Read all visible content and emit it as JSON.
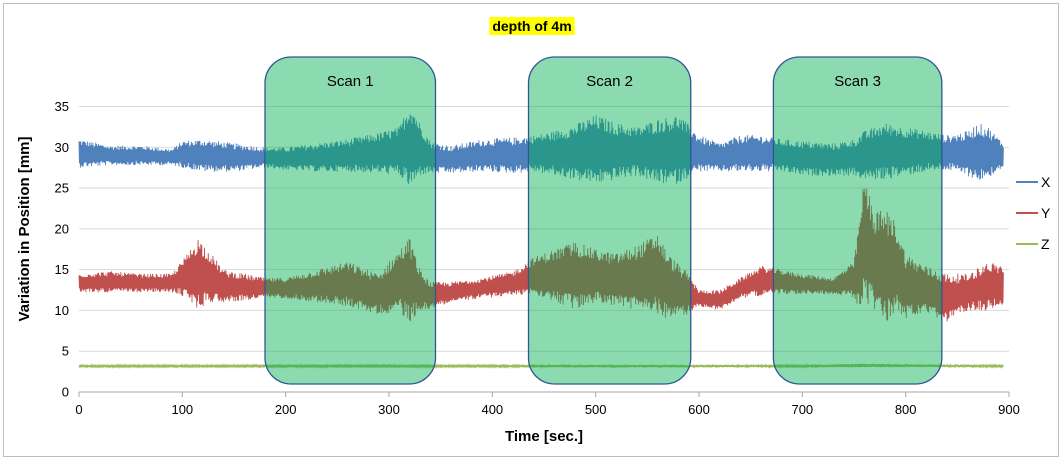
{
  "chart_data": {
    "type": "line",
    "title": "depth of 4m",
    "title_highlight_color": "#ffff00",
    "xlabel": "Time [sec.]",
    "ylabel": "Variation in Position [mm]",
    "xlim": [
      0,
      900
    ],
    "ylim": [
      0,
      38
    ],
    "x_ticks": [
      0,
      100,
      200,
      300,
      400,
      500,
      600,
      700,
      800,
      900
    ],
    "y_ticks": [
      0,
      5,
      10,
      15,
      20,
      25,
      30,
      35
    ],
    "grid": "horizontal",
    "legend": "right",
    "series": [
      {
        "name": "X",
        "color": "#4f81bd",
        "x": [
          0,
          30,
          60,
          90,
          100,
          120,
          150,
          180,
          200,
          230,
          260,
          290,
          310,
          320,
          325,
          330,
          340,
          360,
          390,
          420,
          440,
          460,
          480,
          500,
          520,
          540,
          560,
          580,
          600,
          620,
          640,
          660,
          680,
          700,
          730,
          750,
          760,
          780,
          800,
          820,
          840,
          860,
          870,
          880,
          895
        ],
        "upper": [
          31,
          30.2,
          30.2,
          29.8,
          30.8,
          31,
          30.5,
          30,
          30,
          30.5,
          31,
          31.8,
          32.5,
          35.5,
          34.5,
          33,
          30.8,
          30.2,
          31,
          31.2,
          31.5,
          32,
          32.8,
          34,
          33,
          32.5,
          33.5,
          34,
          31.5,
          30.5,
          31.5,
          31.5,
          31,
          30.8,
          30.5,
          31,
          32,
          33,
          32.5,
          32,
          31.5,
          32,
          33,
          32.5,
          30.5
        ],
        "lower": [
          27.5,
          27.8,
          27.8,
          27.8,
          27.5,
          27,
          27,
          27.5,
          27.2,
          27,
          27,
          26.8,
          26.5,
          25,
          25.5,
          26.5,
          26.8,
          26.8,
          27,
          26.8,
          27,
          26.5,
          26,
          25.5,
          26,
          26.5,
          25.5,
          25.5,
          27,
          27,
          27,
          27,
          27,
          26.5,
          26.5,
          26.5,
          26,
          26,
          26.5,
          27,
          27.2,
          26.5,
          25.8,
          26.2,
          27.5
        ]
      },
      {
        "name": "Y",
        "color": "#c0504d",
        "x": [
          0,
          30,
          60,
          90,
          105,
          115,
          125,
          140,
          160,
          180,
          200,
          230,
          260,
          290,
          310,
          320,
          330,
          340,
          360,
          390,
          420,
          440,
          460,
          480,
          500,
          520,
          540,
          560,
          570,
          590,
          600,
          620,
          640,
          660,
          680,
          700,
          730,
          750,
          755,
          760,
          770,
          780,
          790,
          800,
          820,
          840,
          860,
          880,
          895
        ],
        "upper": [
          14.5,
          14.8,
          14.5,
          14.5,
          17,
          19,
          17.5,
          15,
          14.5,
          14,
          14,
          15,
          16,
          14.5,
          17.5,
          19,
          15,
          13.5,
          13.5,
          14,
          14.8,
          16.5,
          17.5,
          18.5,
          17.5,
          17,
          18,
          19.5,
          17,
          14.5,
          12.5,
          12.5,
          14,
          15.5,
          15,
          14.5,
          14,
          16,
          21,
          26.5,
          22,
          22.5,
          21,
          17,
          15.5,
          14.5,
          14.5,
          16,
          15.5
        ],
        "lower": [
          12.2,
          12.2,
          12.2,
          12.2,
          11.5,
          10,
          11,
          11,
          11.2,
          11.5,
          11.5,
          11,
          10.5,
          9.5,
          9.8,
          8.5,
          10,
          10.2,
          11,
          11.5,
          11.8,
          12,
          11,
          10,
          11,
          10.5,
          10,
          9.5,
          9,
          9.5,
          10.5,
          10,
          11.5,
          11.8,
          12,
          12,
          12,
          11.5,
          10,
          11,
          10,
          8,
          10,
          9,
          9.5,
          8.5,
          10,
          10,
          10.5
        ]
      },
      {
        "name": "Z",
        "color": "#9bbb59",
        "x": [
          0,
          100,
          200,
          300,
          400,
          500,
          600,
          700,
          760,
          800,
          895
        ],
        "upper": [
          3.3,
          3.3,
          3.3,
          3.3,
          3.3,
          3.35,
          3.35,
          3.3,
          3.5,
          3.4,
          3.3
        ],
        "lower": [
          3.05,
          3.05,
          3.05,
          3.05,
          3.05,
          3.0,
          3.0,
          3.05,
          3.0,
          3.05,
          3.05
        ]
      }
    ],
    "annotations": [
      {
        "label": "Scan 1",
        "x_start": 180,
        "x_end": 345,
        "color": "#00b050",
        "opacity": 0.45
      },
      {
        "label": "Scan 2",
        "x_start": 435,
        "x_end": 592,
        "color": "#00b050",
        "opacity": 0.45
      },
      {
        "label": "Scan 3",
        "x_start": 672,
        "x_end": 835,
        "color": "#00b050",
        "opacity": 0.45
      }
    ]
  }
}
